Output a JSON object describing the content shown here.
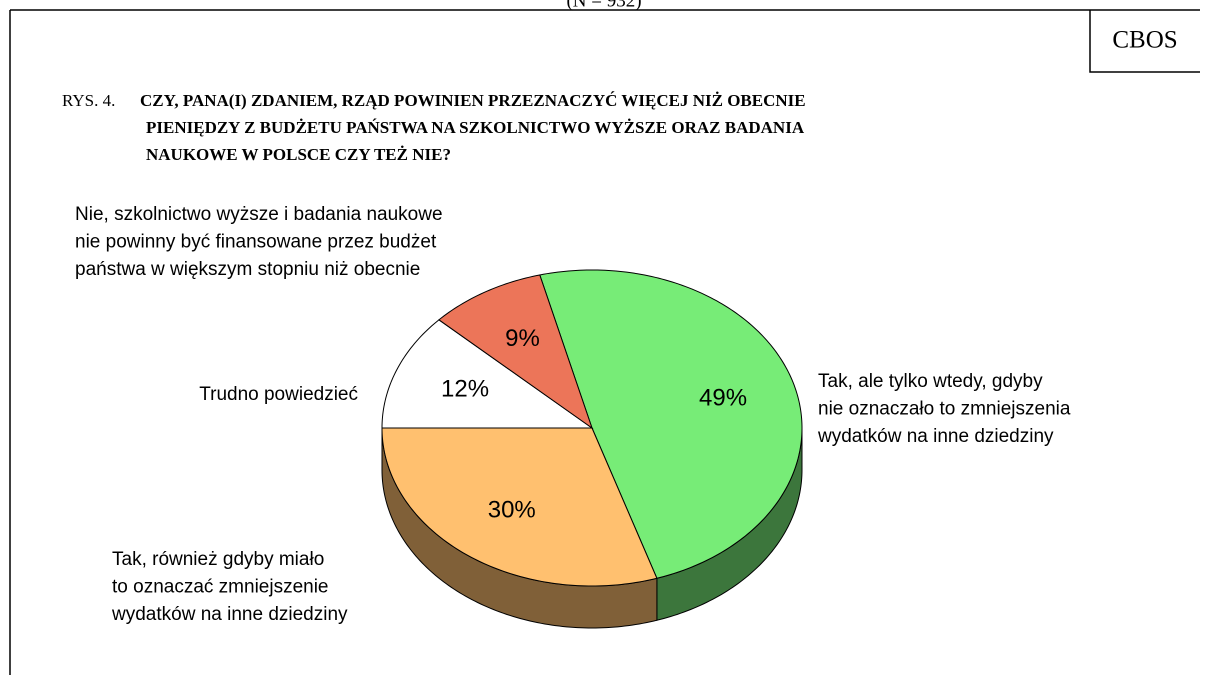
{
  "chart_data": {
    "type": "pie",
    "subtitle": "(N = 932)",
    "source": "CBOS",
    "figure_label": "RYS. 4.",
    "title": [
      "CZY, PANA(I) ZDANIEM, RZĄD POWINIEN PRZEZNACZYĆ WIĘCEJ NIŻ OBECNIE",
      "PIENIĘDZY Z BUDŻETU PAŃSTWA NA SZKOLNICTWO WYŻSZE ORAZ BADANIA",
      "NAUKOWE W POLSCE CZY TEŻ NIE?"
    ],
    "categories": [
      [
        "Tak, ale tylko wtedy, gdyby",
        "nie oznaczało to zmniejszenia",
        "wydatków na inne dziedziny"
      ],
      [
        "Tak, również gdyby miało",
        "to oznaczać zmniejszenie",
        "wydatków na inne dziedziny"
      ],
      [
        "Trudno powiedzieć"
      ],
      [
        "Nie, szkolnictwo wyższe i badania naukowe",
        "nie powinny być finansowane przez budżet",
        "państwa w większym stopniu niż obecnie"
      ]
    ],
    "values": [
      49,
      30,
      12,
      9
    ],
    "value_labels": [
      "49%",
      "30%",
      "12%",
      "9%"
    ],
    "colors": [
      "#77ec77",
      "#ffc06f",
      "#ffffff",
      "#ec7559"
    ]
  }
}
